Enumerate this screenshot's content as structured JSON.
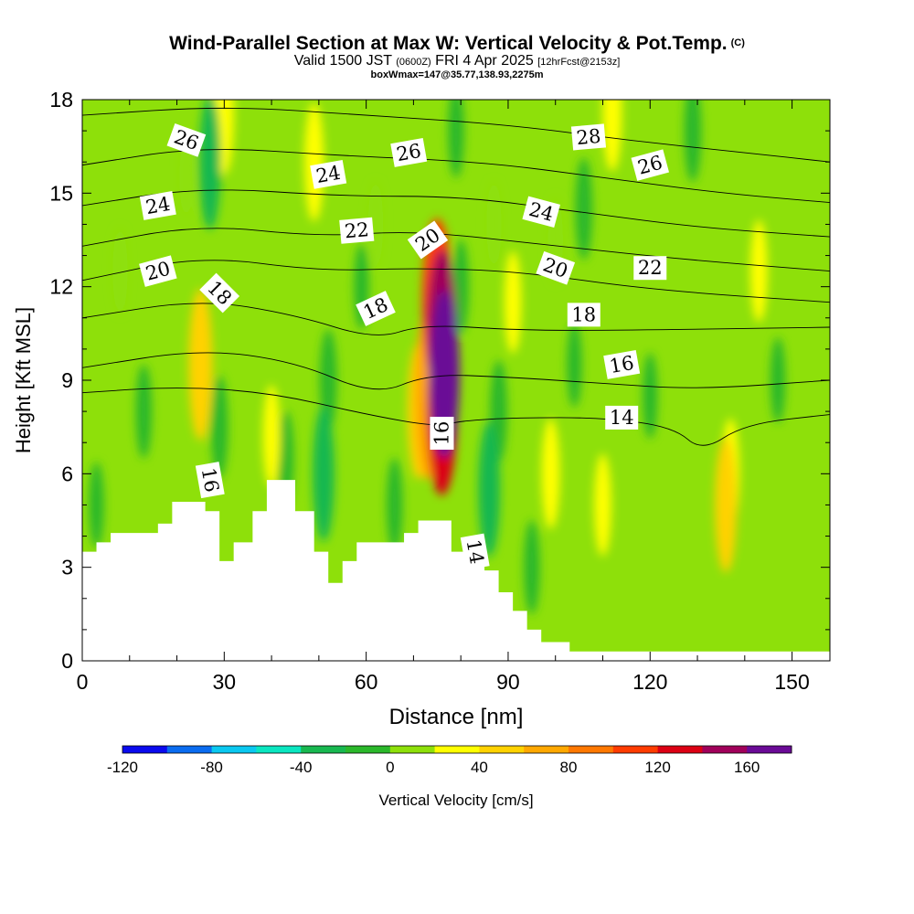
{
  "header": {
    "title": "Wind-Parallel Section at Max W: Vertical Velocity & Pot.Temp.",
    "title_mark": "(C)",
    "valid_prefix": "Valid 1500 JST",
    "valid_utc": "(0600Z)",
    "valid_date": "FRI 4 Apr 2025",
    "forecast_info": "[12hrFcst@2153z]",
    "box_info": "boxWmax=147@35.77,138.93,2275m"
  },
  "chart_data": {
    "type": "heatmap",
    "title": "Wind-Parallel Section at Max W: Vertical Velocity & Pot.Temp.",
    "xlabel": "Distance [nm]",
    "ylabel": "Height [Kft MSL]",
    "xlim": [
      0,
      158
    ],
    "ylim": [
      0,
      18
    ],
    "x_ticks": [
      0,
      30,
      60,
      90,
      120,
      150
    ],
    "y_ticks": [
      0,
      3,
      6,
      9,
      12,
      15,
      18
    ],
    "colorbar": {
      "label": "Vertical Velocity [cm/s]",
      "range": [
        -120,
        180
      ],
      "step": 20,
      "tick_values": [
        -120,
        -80,
        -40,
        0,
        40,
        80,
        120,
        160
      ],
      "tick_labels": [
        "-120",
        "-80",
        "-40",
        "0",
        "40",
        "80",
        "120",
        "160"
      ],
      "colors": [
        "#0a0aee",
        "#0a6cf0",
        "#0ac8f0",
        "#0ae6c0",
        "#18b850",
        "#2bb82b",
        "#8ee00a",
        "#ffff00",
        "#ffd200",
        "#ffa800",
        "#ff7800",
        "#ff3c00",
        "#dc0014",
        "#a0005a",
        "#6a0a96"
      ]
    },
    "velocity_cells": [
      {
        "x": 76.5,
        "y": 9.2,
        "w": 160
      },
      {
        "x": 76,
        "y": 10.5,
        "w": 140
      },
      {
        "x": 76,
        "y": 8.0,
        "w": 120
      },
      {
        "x": 75,
        "y": 11.5,
        "w": 100
      },
      {
        "x": 73,
        "y": 8.5,
        "w": 60
      },
      {
        "x": 71,
        "y": 8.0,
        "w": 40
      },
      {
        "x": 25,
        "y": 9.5,
        "w": 50
      },
      {
        "x": 30,
        "y": 17.5,
        "w": 30
      },
      {
        "x": 49,
        "y": 16.0,
        "w": 30
      },
      {
        "x": 40,
        "y": 7.2,
        "w": 20
      },
      {
        "x": 87,
        "y": 14.0,
        "w": 10
      },
      {
        "x": 91,
        "y": 11.5,
        "w": 20
      },
      {
        "x": 99,
        "y": 6.0,
        "w": 25
      },
      {
        "x": 110,
        "y": 5.0,
        "w": 20
      },
      {
        "x": 136,
        "y": 5.0,
        "w": 40
      },
      {
        "x": 137,
        "y": 6.0,
        "w": 25
      },
      {
        "x": 112,
        "y": 17.6,
        "w": 30
      },
      {
        "x": 143,
        "y": 12.5,
        "w": 20
      },
      {
        "x": 100,
        "y": 13.5,
        "w": 10
      },
      {
        "x": 62,
        "y": 14.0,
        "w": 10
      },
      {
        "x": 8,
        "y": 12.5,
        "w": 10
      },
      {
        "x": 22,
        "y": 15.5,
        "w": 5
      },
      {
        "x": 52,
        "y": 9.0,
        "w": -20
      },
      {
        "x": 59,
        "y": 12.0,
        "w": -10
      },
      {
        "x": 51,
        "y": 6.0,
        "w": -40
      },
      {
        "x": 86,
        "y": 5.5,
        "w": -40
      },
      {
        "x": 88,
        "y": 8.0,
        "w": -20
      },
      {
        "x": 27,
        "y": 16.0,
        "w": -40
      },
      {
        "x": 29,
        "y": 7.5,
        "w": -20
      },
      {
        "x": 13,
        "y": 8.0,
        "w": -15
      },
      {
        "x": 43,
        "y": 6.5,
        "w": -15
      },
      {
        "x": 129,
        "y": 17.0,
        "w": -20
      },
      {
        "x": 106,
        "y": 14.5,
        "w": -20
      },
      {
        "x": 80,
        "y": 12.0,
        "w": -15
      },
      {
        "x": 79,
        "y": 17.0,
        "w": -15
      },
      {
        "x": 120,
        "y": 8.5,
        "w": -10
      },
      {
        "x": 147,
        "y": 9.0,
        "w": -10
      },
      {
        "x": 104,
        "y": 9.5,
        "w": -10
      },
      {
        "x": 95,
        "y": 3.0,
        "w": -15
      },
      {
        "x": 66,
        "y": 5.0,
        "w": -15
      },
      {
        "x": 3,
        "y": 5.0,
        "w": -10
      }
    ],
    "terrain": [
      {
        "x": 0,
        "y": 3.5
      },
      {
        "x": 3,
        "y": 3.8
      },
      {
        "x": 6,
        "y": 4.1
      },
      {
        "x": 16,
        "y": 4.4
      },
      {
        "x": 19,
        "y": 5.1
      },
      {
        "x": 26,
        "y": 4.8
      },
      {
        "x": 29,
        "y": 3.2
      },
      {
        "x": 32,
        "y": 3.8
      },
      {
        "x": 36,
        "y": 4.8
      },
      {
        "x": 39,
        "y": 5.8
      },
      {
        "x": 45,
        "y": 4.8
      },
      {
        "x": 49,
        "y": 3.5
      },
      {
        "x": 52,
        "y": 2.5
      },
      {
        "x": 55,
        "y": 3.2
      },
      {
        "x": 58,
        "y": 3.8
      },
      {
        "x": 68,
        "y": 4.1
      },
      {
        "x": 71,
        "y": 4.5
      },
      {
        "x": 78,
        "y": 3.5
      },
      {
        "x": 81,
        "y": 3.8
      },
      {
        "x": 85,
        "y": 2.9
      },
      {
        "x": 88,
        "y": 2.2
      },
      {
        "x": 91,
        "y": 1.6
      },
      {
        "x": 94,
        "y": 1.0
      },
      {
        "x": 97,
        "y": 0.6
      },
      {
        "x": 100,
        "y": 0.6
      },
      {
        "x": 103,
        "y": 0.3
      },
      {
        "x": 158,
        "y": 0.3
      }
    ],
    "theta_contours": [
      {
        "level": 14,
        "points": [
          [
            0,
            8.6
          ],
          [
            20,
            8.8
          ],
          [
            40,
            8.6
          ],
          [
            60,
            7.9
          ],
          [
            75,
            7.5
          ],
          [
            80,
            7.7
          ],
          [
            92,
            7.8
          ],
          [
            110,
            7.8
          ],
          [
            125,
            7.5
          ],
          [
            131,
            6.7
          ],
          [
            140,
            7.6
          ],
          [
            158,
            7.9
          ]
        ]
      },
      {
        "level": 16,
        "points": [
          [
            0,
            9.4
          ],
          [
            25,
            10.0
          ],
          [
            45,
            9.6
          ],
          [
            62,
            8.5
          ],
          [
            73,
            9.2
          ],
          [
            90,
            9.1
          ],
          [
            110,
            8.9
          ],
          [
            130,
            8.7
          ],
          [
            158,
            9.0
          ]
        ]
      },
      {
        "level": 18,
        "points": [
          [
            0,
            11.0
          ],
          [
            25,
            11.6
          ],
          [
            45,
            11.1
          ],
          [
            62,
            10.3
          ],
          [
            72,
            10.8
          ],
          [
            92,
            10.6
          ],
          [
            115,
            10.6
          ],
          [
            158,
            10.7
          ]
        ]
      },
      {
        "level": 20,
        "points": [
          [
            0,
            12.2
          ],
          [
            25,
            13.0
          ],
          [
            50,
            12.5
          ],
          [
            70,
            12.6
          ],
          [
            92,
            12.5
          ],
          [
            120,
            11.9
          ],
          [
            158,
            11.5
          ]
        ]
      },
      {
        "level": 22,
        "points": [
          [
            0,
            13.3
          ],
          [
            25,
            14.0
          ],
          [
            50,
            13.6
          ],
          [
            70,
            13.8
          ],
          [
            95,
            13.4
          ],
          [
            125,
            12.9
          ],
          [
            158,
            12.5
          ]
        ]
      },
      {
        "level": 24,
        "points": [
          [
            0,
            14.6
          ],
          [
            25,
            15.2
          ],
          [
            55,
            14.9
          ],
          [
            80,
            14.9
          ],
          [
            105,
            14.4
          ],
          [
            130,
            13.9
          ],
          [
            158,
            13.6
          ]
        ]
      },
      {
        "level": 26,
        "points": [
          [
            0,
            15.9
          ],
          [
            25,
            16.5
          ],
          [
            55,
            16.2
          ],
          [
            85,
            16.0
          ],
          [
            110,
            15.5
          ],
          [
            135,
            15.0
          ],
          [
            158,
            14.7
          ]
        ]
      },
      {
        "level": 28,
        "points": [
          [
            0,
            17.5
          ],
          [
            30,
            17.8
          ],
          [
            60,
            17.5
          ],
          [
            90,
            17.2
          ],
          [
            115,
            16.7
          ],
          [
            140,
            16.3
          ],
          [
            158,
            16.0
          ]
        ]
      }
    ],
    "contour_labels": [
      {
        "text": "26",
        "x": 22,
        "y": 16.7,
        "angle": 20
      },
      {
        "text": "24",
        "x": 16,
        "y": 14.6,
        "angle": -10
      },
      {
        "text": "20",
        "x": 16,
        "y": 12.5,
        "angle": -15
      },
      {
        "text": "18",
        "x": 29,
        "y": 11.8,
        "angle": 45
      },
      {
        "text": "24",
        "x": 52,
        "y": 15.6,
        "angle": -10
      },
      {
        "text": "26",
        "x": 69,
        "y": 16.3,
        "angle": -10
      },
      {
        "text": "22",
        "x": 58,
        "y": 13.8,
        "angle": -5
      },
      {
        "text": "18",
        "x": 62,
        "y": 11.3,
        "angle": -25
      },
      {
        "text": "20",
        "x": 73,
        "y": 13.5,
        "angle": -35
      },
      {
        "text": "16",
        "x": 76,
        "y": 7.3,
        "angle": -90
      },
      {
        "text": "28",
        "x": 107,
        "y": 16.8,
        "angle": -5
      },
      {
        "text": "26",
        "x": 120,
        "y": 15.9,
        "angle": -15
      },
      {
        "text": "24",
        "x": 97,
        "y": 14.4,
        "angle": 15
      },
      {
        "text": "20",
        "x": 100,
        "y": 12.6,
        "angle": 20
      },
      {
        "text": "22",
        "x": 120,
        "y": 12.6,
        "angle": 0
      },
      {
        "text": "18",
        "x": 106,
        "y": 11.1,
        "angle": 0
      },
      {
        "text": "16",
        "x": 114,
        "y": 9.5,
        "angle": -10
      },
      {
        "text": "14",
        "x": 114,
        "y": 7.8,
        "angle": 0
      },
      {
        "text": "16",
        "x": 27,
        "y": 5.8,
        "angle": 80
      },
      {
        "text": "14",
        "x": 83,
        "y": 3.5,
        "angle": 80
      }
    ]
  }
}
